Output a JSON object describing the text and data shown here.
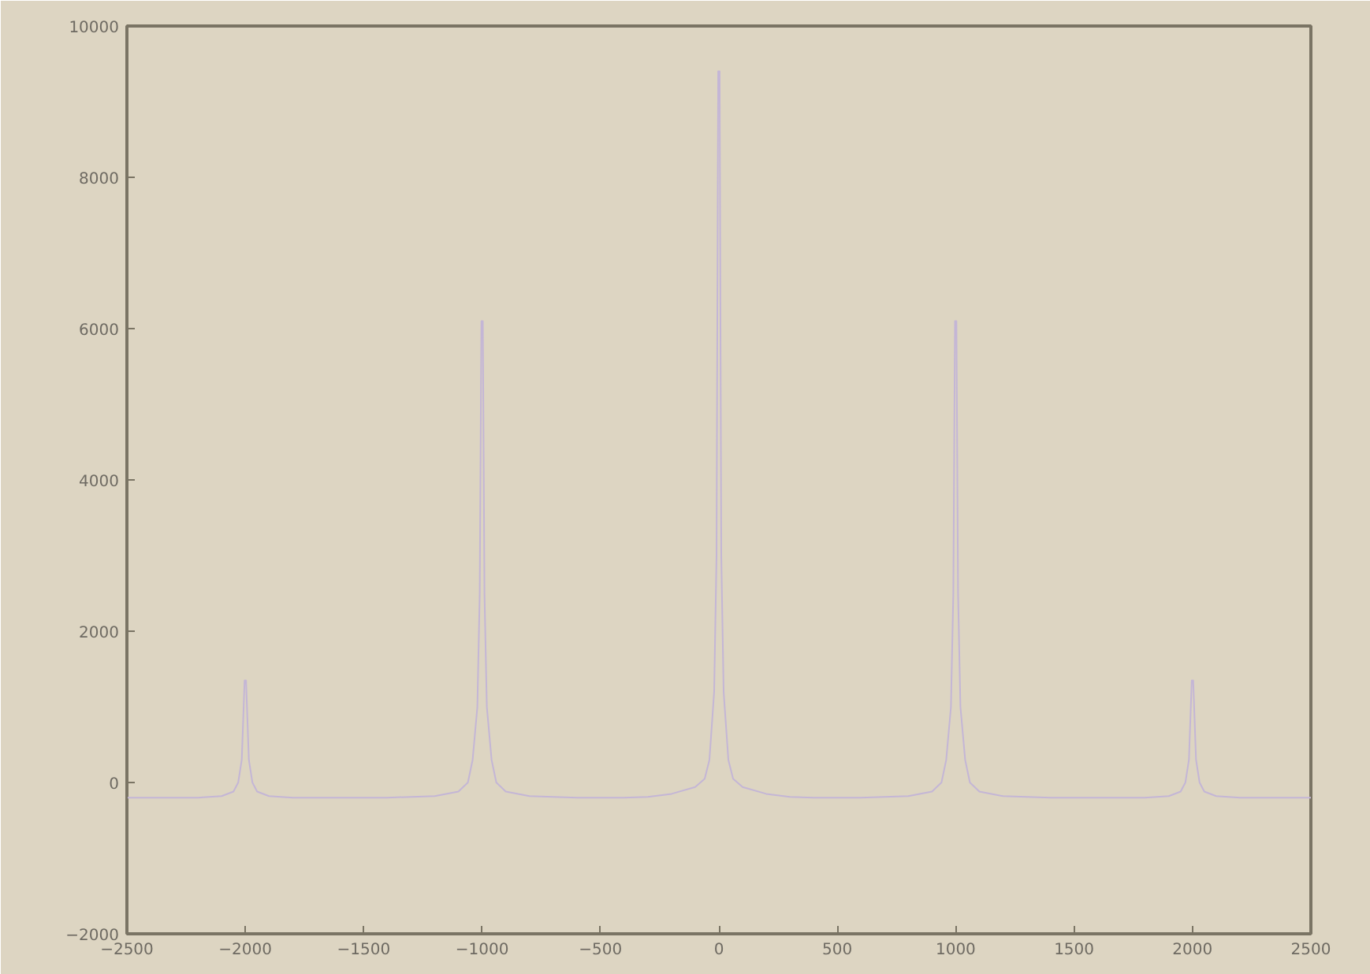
{
  "chart_data": {
    "type": "line",
    "xlim": [
      -2500,
      2500
    ],
    "ylim": [
      -2000,
      10000
    ],
    "xticks": [
      -2500,
      -2000,
      -1500,
      -1000,
      -500,
      0,
      500,
      1000,
      1500,
      2000,
      2500
    ],
    "yticks": [
      -2000,
      0,
      2000,
      4000,
      6000,
      8000,
      10000
    ],
    "grid": false,
    "marker": "none",
    "line_style": "solid",
    "series": [
      {
        "color": "#c4b6d6",
        "x": [
          -2500,
          -2300,
          -2200,
          -2100,
          -2050,
          -2030,
          -2015,
          -2003,
          -1997,
          -1985,
          -1970,
          -1950,
          -1900,
          -1800,
          -1600,
          -1400,
          -1200,
          -1100,
          -1060,
          -1040,
          -1020,
          -1010,
          -1003,
          -997,
          -990,
          -980,
          -960,
          -940,
          -900,
          -800,
          -600,
          -400,
          -300,
          -200,
          -100,
          -60,
          -40,
          -20,
          -10,
          -3,
          3,
          10,
          20,
          40,
          60,
          100,
          200,
          300,
          400,
          600,
          800,
          900,
          940,
          960,
          980,
          990,
          997,
          1003,
          1010,
          1020,
          1040,
          1060,
          1100,
          1200,
          1400,
          1600,
          1800,
          1900,
          1950,
          1970,
          1985,
          1997,
          2003,
          2015,
          2030,
          2050,
          2100,
          2200,
          2300,
          2500
        ],
        "values": [
          -200,
          -200,
          -200,
          -180,
          -120,
          0,
          300,
          1350,
          1350,
          300,
          0,
          -120,
          -180,
          -200,
          -200,
          -200,
          -180,
          -120,
          0,
          300,
          1000,
          2500,
          6100,
          6100,
          2500,
          1000,
          300,
          0,
          -120,
          -180,
          -200,
          -200,
          -190,
          -150,
          -60,
          50,
          300,
          1200,
          3000,
          9400,
          9400,
          3000,
          1200,
          300,
          50,
          -60,
          -150,
          -190,
          -200,
          -200,
          -180,
          -120,
          0,
          300,
          1000,
          2500,
          6100,
          6100,
          2500,
          1000,
          300,
          0,
          -120,
          -180,
          -200,
          -200,
          -200,
          -180,
          -120,
          0,
          300,
          1350,
          1350,
          300,
          0,
          -120,
          -180,
          -200,
          -200,
          -200
        ]
      }
    ]
  }
}
